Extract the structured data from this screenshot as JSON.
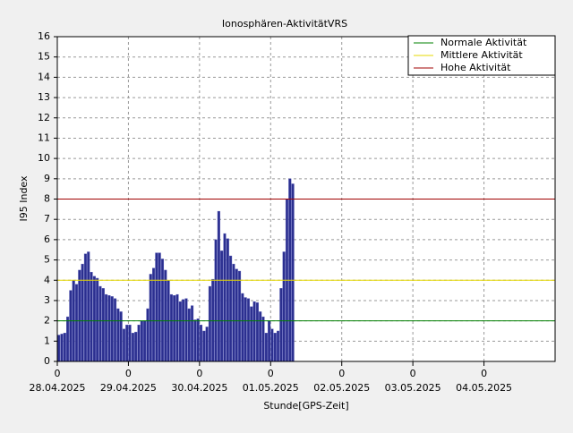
{
  "chart_data": {
    "type": "bar",
    "title": "Ionosphären-AktivitätVRS",
    "x_label": "Stunde[GPS-Zeit]",
    "y_label": "I95 Index",
    "x": [
      0,
      1,
      2,
      3,
      4,
      5,
      6,
      7,
      8,
      9,
      10,
      11,
      12,
      13,
      14,
      15,
      16,
      17,
      18,
      19,
      20,
      21,
      22,
      23,
      24,
      25,
      26,
      27,
      28,
      29,
      30,
      31,
      32,
      33,
      34,
      35,
      36,
      37,
      38,
      39,
      40,
      41,
      42,
      43,
      44,
      45,
      46,
      47,
      48,
      49,
      50,
      51,
      52,
      53,
      54,
      55,
      56,
      57,
      58,
      59,
      60,
      61,
      62,
      63,
      64,
      65,
      66,
      67,
      68,
      69,
      70,
      71,
      72,
      73,
      74,
      75,
      76,
      77,
      78,
      79
    ],
    "values": [
      1.3,
      1.35,
      1.4,
      2.2,
      3.5,
      4.0,
      3.8,
      4.5,
      4.8,
      5.3,
      5.4,
      4.4,
      4.2,
      4.1,
      3.7,
      3.6,
      3.3,
      3.25,
      3.2,
      3.1,
      2.6,
      2.45,
      1.6,
      1.8,
      1.8,
      1.4,
      1.45,
      1.8,
      2.0,
      2.0,
      2.6,
      4.3,
      4.6,
      5.35,
      5.35,
      5.05,
      4.5,
      4.0,
      3.3,
      3.25,
      3.3,
      2.95,
      3.05,
      3.1,
      2.6,
      2.75,
      2.05,
      2.1,
      1.8,
      1.5,
      1.7,
      3.7,
      4.05,
      6.0,
      7.4,
      5.45,
      6.3,
      6.05,
      5.2,
      4.8,
      4.55,
      4.45,
      3.35,
      3.15,
      3.1,
      2.7,
      2.95,
      2.9,
      2.45,
      2.2,
      1.4,
      2.0,
      1.6,
      1.4,
      1.5,
      3.6,
      5.4,
      8.0,
      9.0,
      8.75
    ],
    "color": "#2b2f8f",
    "thresholds": [
      {
        "name": "Normale Aktivität",
        "color": "#008000",
        "value": 2
      },
      {
        "name": "Mittlere Aktivität",
        "color": "#e6d800",
        "value": 4
      },
      {
        "name": "Hohe Aktivität",
        "color": "#a00000",
        "value": 8
      }
    ],
    "xlim": [
      0,
      168
    ],
    "xticks": [
      {
        "value": 0,
        "label": "0"
      },
      {
        "value": 24,
        "label": "0"
      },
      {
        "value": 48,
        "label": "0"
      },
      {
        "value": 72,
        "label": "0"
      },
      {
        "value": 96,
        "label": "0"
      },
      {
        "value": 120,
        "label": "0"
      },
      {
        "value": 144,
        "label": "0"
      }
    ],
    "x_dates": [
      "28.04.2025",
      "29.04.2025",
      "30.04.2025",
      "01.05.2025",
      "02.05.2025",
      "03.05.2025",
      "04.05.2025"
    ],
    "ylim": [
      0,
      16
    ],
    "yticks": [
      0,
      1,
      2,
      3,
      4,
      5,
      6,
      7,
      8,
      9,
      10,
      11,
      12,
      13,
      14,
      15,
      16
    ],
    "grid": true,
    "legend": "top-right"
  }
}
